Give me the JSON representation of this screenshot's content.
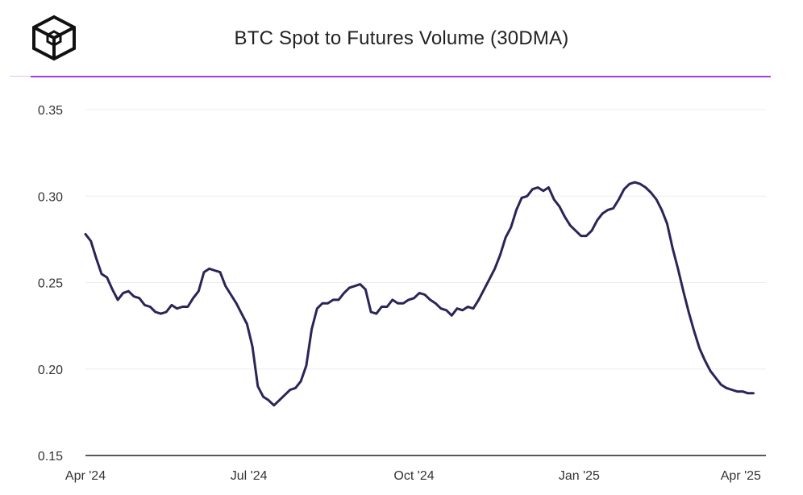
{
  "header": {
    "title": "BTC Spot to Futures Volume (30DMA)",
    "logo_icon": "cube-logo-icon",
    "accent_color": "#a63cf0"
  },
  "chart_data": {
    "type": "line",
    "title": "BTC Spot to Futures Volume (30DMA)",
    "xlabel": "",
    "ylabel": "",
    "ylim": [
      0.15,
      0.35
    ],
    "yticks": [
      "0.15",
      "0.20",
      "0.25",
      "0.30",
      "0.35"
    ],
    "ytick_values": [
      0.15,
      0.2,
      0.25,
      0.3,
      0.35
    ],
    "xlim": [
      "2024-04-01",
      "2025-04-15"
    ],
    "xticks": [
      {
        "date": "2024-04-01",
        "label": "Apr '24"
      },
      {
        "date": "2024-07-01",
        "label": "Jul '24"
      },
      {
        "date": "2024-10-01",
        "label": "Oct '24"
      },
      {
        "date": "2025-01-01",
        "label": "Jan '25"
      },
      {
        "date": "2025-04-01",
        "label": "Apr '25"
      }
    ],
    "grid": true,
    "line_color": "#2a2557",
    "series": [
      {
        "points": [
          [
            "2024-04-01",
            0.278
          ],
          [
            "2024-04-04",
            0.274
          ],
          [
            "2024-04-07",
            0.264
          ],
          [
            "2024-04-10",
            0.255
          ],
          [
            "2024-04-13",
            0.253
          ],
          [
            "2024-04-16",
            0.246
          ],
          [
            "2024-04-19",
            0.24
          ],
          [
            "2024-04-22",
            0.244
          ],
          [
            "2024-04-25",
            0.245
          ],
          [
            "2024-04-28",
            0.242
          ],
          [
            "2024-05-01",
            0.241
          ],
          [
            "2024-05-04",
            0.237
          ],
          [
            "2024-05-07",
            0.236
          ],
          [
            "2024-05-10",
            0.233
          ],
          [
            "2024-05-13",
            0.232
          ],
          [
            "2024-05-16",
            0.233
          ],
          [
            "2024-05-19",
            0.237
          ],
          [
            "2024-05-22",
            0.235
          ],
          [
            "2024-05-25",
            0.236
          ],
          [
            "2024-05-28",
            0.236
          ],
          [
            "2024-05-31",
            0.241
          ],
          [
            "2024-06-03",
            0.245
          ],
          [
            "2024-06-06",
            0.256
          ],
          [
            "2024-06-09",
            0.258
          ],
          [
            "2024-06-12",
            0.257
          ],
          [
            "2024-06-15",
            0.256
          ],
          [
            "2024-06-18",
            0.248
          ],
          [
            "2024-06-21",
            0.243
          ],
          [
            "2024-06-24",
            0.238
          ],
          [
            "2024-06-27",
            0.232
          ],
          [
            "2024-06-30",
            0.226
          ],
          [
            "2024-07-03",
            0.213
          ],
          [
            "2024-07-06",
            0.19
          ],
          [
            "2024-07-09",
            0.184
          ],
          [
            "2024-07-12",
            0.182
          ],
          [
            "2024-07-15",
            0.179
          ],
          [
            "2024-07-18",
            0.182
          ],
          [
            "2024-07-21",
            0.185
          ],
          [
            "2024-07-24",
            0.188
          ],
          [
            "2024-07-27",
            0.189
          ],
          [
            "2024-07-30",
            0.193
          ],
          [
            "2024-08-02",
            0.202
          ],
          [
            "2024-08-05",
            0.223
          ],
          [
            "2024-08-08",
            0.235
          ],
          [
            "2024-08-11",
            0.238
          ],
          [
            "2024-08-14",
            0.238
          ],
          [
            "2024-08-17",
            0.24
          ],
          [
            "2024-08-20",
            0.24
          ],
          [
            "2024-08-23",
            0.244
          ],
          [
            "2024-08-26",
            0.247
          ],
          [
            "2024-08-29",
            0.248
          ],
          [
            "2024-09-01",
            0.249
          ],
          [
            "2024-09-04",
            0.246
          ],
          [
            "2024-09-07",
            0.233
          ],
          [
            "2024-09-10",
            0.232
          ],
          [
            "2024-09-13",
            0.236
          ],
          [
            "2024-09-16",
            0.236
          ],
          [
            "2024-09-19",
            0.24
          ],
          [
            "2024-09-22",
            0.238
          ],
          [
            "2024-09-25",
            0.238
          ],
          [
            "2024-09-28",
            0.24
          ],
          [
            "2024-10-01",
            0.241
          ],
          [
            "2024-10-04",
            0.244
          ],
          [
            "2024-10-07",
            0.243
          ],
          [
            "2024-10-10",
            0.24
          ],
          [
            "2024-10-13",
            0.238
          ],
          [
            "2024-10-16",
            0.235
          ],
          [
            "2024-10-19",
            0.234
          ],
          [
            "2024-10-22",
            0.231
          ],
          [
            "2024-10-25",
            0.235
          ],
          [
            "2024-10-28",
            0.234
          ],
          [
            "2024-10-31",
            0.236
          ],
          [
            "2024-11-03",
            0.235
          ],
          [
            "2024-11-06",
            0.24
          ],
          [
            "2024-11-09",
            0.246
          ],
          [
            "2024-11-12",
            0.252
          ],
          [
            "2024-11-15",
            0.258
          ],
          [
            "2024-11-18",
            0.266
          ],
          [
            "2024-11-21",
            0.276
          ],
          [
            "2024-11-24",
            0.282
          ],
          [
            "2024-11-27",
            0.292
          ],
          [
            "2024-11-30",
            0.299
          ],
          [
            "2024-12-03",
            0.3
          ],
          [
            "2024-12-06",
            0.304
          ],
          [
            "2024-12-09",
            0.305
          ],
          [
            "2024-12-12",
            0.303
          ],
          [
            "2024-12-15",
            0.305
          ],
          [
            "2024-12-18",
            0.298
          ],
          [
            "2024-12-21",
            0.294
          ],
          [
            "2024-12-24",
            0.288
          ],
          [
            "2024-12-27",
            0.283
          ],
          [
            "2024-12-30",
            0.28
          ],
          [
            "2025-01-02",
            0.277
          ],
          [
            "2025-01-05",
            0.277
          ],
          [
            "2025-01-08",
            0.28
          ],
          [
            "2025-01-11",
            0.286
          ],
          [
            "2025-01-14",
            0.29
          ],
          [
            "2025-01-17",
            0.292
          ],
          [
            "2025-01-20",
            0.293
          ],
          [
            "2025-01-23",
            0.298
          ],
          [
            "2025-01-26",
            0.304
          ],
          [
            "2025-01-29",
            0.307
          ],
          [
            "2025-02-01",
            0.308
          ],
          [
            "2025-02-04",
            0.307
          ],
          [
            "2025-02-07",
            0.305
          ],
          [
            "2025-02-10",
            0.302
          ],
          [
            "2025-02-13",
            0.298
          ],
          [
            "2025-02-16",
            0.292
          ],
          [
            "2025-02-19",
            0.284
          ],
          [
            "2025-02-22",
            0.27
          ],
          [
            "2025-02-25",
            0.258
          ],
          [
            "2025-02-28",
            0.245
          ],
          [
            "2025-03-03",
            0.233
          ],
          [
            "2025-03-06",
            0.222
          ],
          [
            "2025-03-09",
            0.212
          ],
          [
            "2025-03-12",
            0.205
          ],
          [
            "2025-03-15",
            0.199
          ],
          [
            "2025-03-18",
            0.195
          ],
          [
            "2025-03-21",
            0.191
          ],
          [
            "2025-03-24",
            0.189
          ],
          [
            "2025-03-27",
            0.188
          ],
          [
            "2025-03-30",
            0.187
          ],
          [
            "2025-04-02",
            0.187
          ],
          [
            "2025-04-05",
            0.186
          ],
          [
            "2025-04-08",
            0.186
          ]
        ]
      }
    ]
  }
}
